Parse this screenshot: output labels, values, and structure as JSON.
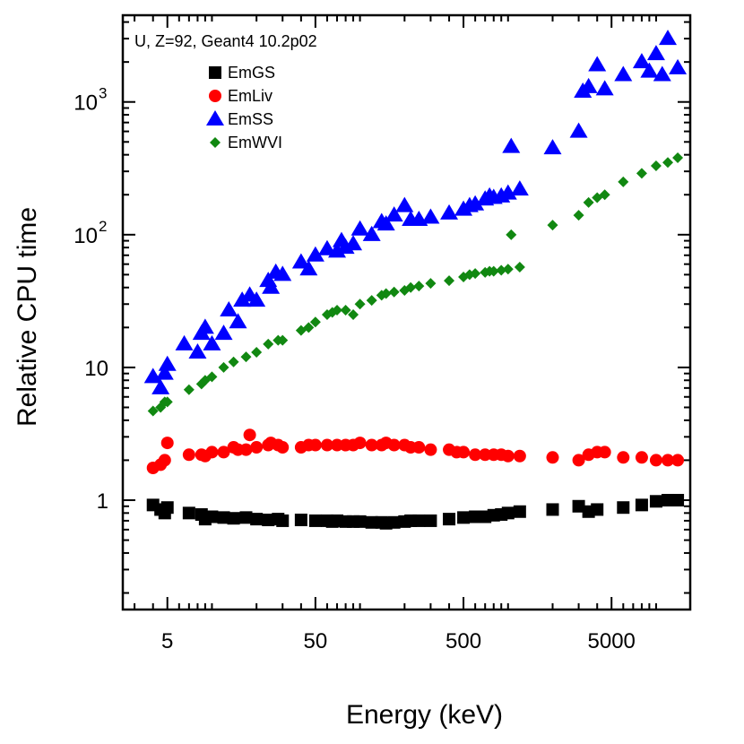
{
  "chart_data": {
    "type": "scatter",
    "xlabel": "Energy (keV)",
    "ylabel": "Relative CPU time",
    "annotation": "U, Z=92, Geant4 10.2p02",
    "x_scale": "log",
    "y_scale": "log",
    "xlim": [
      2.5,
      17000
    ],
    "ylim": [
      0.15,
      4500
    ],
    "legend_position": "top-left",
    "x_ticks": [
      {
        "value": 5,
        "label": "5"
      },
      {
        "value": 50,
        "label": "50"
      },
      {
        "value": 500,
        "label": "500"
      },
      {
        "value": 5000,
        "label": "5000"
      }
    ],
    "y_ticks": [
      {
        "value": 1,
        "label": "1"
      },
      {
        "value": 10,
        "label": "10"
      },
      {
        "value": 100,
        "label": "10",
        "exp": "2"
      },
      {
        "value": 1000,
        "label": "10",
        "exp": "3"
      }
    ],
    "series": [
      {
        "name": "EmGS",
        "marker": "square",
        "color": "#000000",
        "points": [
          [
            4,
            0.92
          ],
          [
            4.5,
            0.85
          ],
          [
            4.8,
            0.8
          ],
          [
            5,
            0.88
          ],
          [
            7,
            0.8
          ],
          [
            8.5,
            0.78
          ],
          [
            9,
            0.72
          ],
          [
            10,
            0.75
          ],
          [
            12,
            0.74
          ],
          [
            14,
            0.73
          ],
          [
            17,
            0.74
          ],
          [
            20,
            0.72
          ],
          [
            24,
            0.71
          ],
          [
            28,
            0.72
          ],
          [
            30,
            0.7
          ],
          [
            40,
            0.71
          ],
          [
            50,
            0.7
          ],
          [
            60,
            0.7
          ],
          [
            65,
            0.69
          ],
          [
            70,
            0.7
          ],
          [
            80,
            0.69
          ],
          [
            90,
            0.69
          ],
          [
            100,
            0.69
          ],
          [
            120,
            0.68
          ],
          [
            140,
            0.68
          ],
          [
            150,
            0.67
          ],
          [
            170,
            0.68
          ],
          [
            200,
            0.69
          ],
          [
            220,
            0.7
          ],
          [
            250,
            0.7
          ],
          [
            300,
            0.7
          ],
          [
            400,
            0.72
          ],
          [
            500,
            0.74
          ],
          [
            600,
            0.75
          ],
          [
            700,
            0.75
          ],
          [
            800,
            0.77
          ],
          [
            900,
            0.78
          ],
          [
            1000,
            0.8
          ],
          [
            1200,
            0.82
          ],
          [
            2000,
            0.85
          ],
          [
            3000,
            0.9
          ],
          [
            3500,
            0.82
          ],
          [
            4000,
            0.85
          ],
          [
            6000,
            0.88
          ],
          [
            8000,
            0.92
          ],
          [
            10000,
            0.98
          ],
          [
            12000,
            1.0
          ],
          [
            14000,
            1.0
          ]
        ]
      },
      {
        "name": "EmLiv",
        "marker": "circle",
        "color": "#ff0000",
        "points": [
          [
            4,
            1.75
          ],
          [
            4.5,
            1.85
          ],
          [
            4.8,
            2.0
          ],
          [
            5,
            2.7
          ],
          [
            7,
            2.2
          ],
          [
            8.5,
            2.2
          ],
          [
            9,
            2.15
          ],
          [
            10,
            2.3
          ],
          [
            12,
            2.3
          ],
          [
            14,
            2.5
          ],
          [
            15,
            2.4
          ],
          [
            17,
            2.4
          ],
          [
            18,
            3.1
          ],
          [
            20,
            2.5
          ],
          [
            24,
            2.6
          ],
          [
            25,
            2.7
          ],
          [
            28,
            2.6
          ],
          [
            30,
            2.5
          ],
          [
            40,
            2.5
          ],
          [
            45,
            2.6
          ],
          [
            50,
            2.6
          ],
          [
            60,
            2.6
          ],
          [
            70,
            2.6
          ],
          [
            80,
            2.6
          ],
          [
            90,
            2.6
          ],
          [
            100,
            2.7
          ],
          [
            120,
            2.6
          ],
          [
            140,
            2.6
          ],
          [
            150,
            2.7
          ],
          [
            170,
            2.6
          ],
          [
            200,
            2.6
          ],
          [
            220,
            2.5
          ],
          [
            250,
            2.5
          ],
          [
            300,
            2.4
          ],
          [
            400,
            2.4
          ],
          [
            450,
            2.3
          ],
          [
            500,
            2.3
          ],
          [
            600,
            2.2
          ],
          [
            700,
            2.2
          ],
          [
            800,
            2.2
          ],
          [
            900,
            2.2
          ],
          [
            1000,
            2.15
          ],
          [
            1200,
            2.15
          ],
          [
            2000,
            2.1
          ],
          [
            3000,
            2.0
          ],
          [
            3500,
            2.2
          ],
          [
            4000,
            2.3
          ],
          [
            4500,
            2.3
          ],
          [
            6000,
            2.1
          ],
          [
            8000,
            2.1
          ],
          [
            10000,
            2.0
          ],
          [
            12000,
            2.0
          ],
          [
            14000,
            2.0
          ]
        ]
      },
      {
        "name": "EmSS",
        "marker": "triangle",
        "color": "#0000ff",
        "points": [
          [
            4,
            8.5
          ],
          [
            4.5,
            7.0
          ],
          [
            4.8,
            9.0
          ],
          [
            5,
            10.5
          ],
          [
            6.5,
            15
          ],
          [
            8,
            13
          ],
          [
            8.5,
            18
          ],
          [
            9,
            20
          ],
          [
            10,
            15
          ],
          [
            12,
            18
          ],
          [
            13,
            27
          ],
          [
            15,
            22
          ],
          [
            16,
            32
          ],
          [
            18,
            35
          ],
          [
            20,
            32
          ],
          [
            24,
            45
          ],
          [
            25,
            40
          ],
          [
            27,
            52
          ],
          [
            30,
            50
          ],
          [
            40,
            62
          ],
          [
            45,
            55
          ],
          [
            50,
            70
          ],
          [
            60,
            78
          ],
          [
            70,
            75
          ],
          [
            75,
            90
          ],
          [
            80,
            80
          ],
          [
            90,
            85
          ],
          [
            100,
            110
          ],
          [
            120,
            100
          ],
          [
            140,
            125
          ],
          [
            150,
            120
          ],
          [
            170,
            140
          ],
          [
            200,
            165
          ],
          [
            220,
            130
          ],
          [
            250,
            130
          ],
          [
            300,
            135
          ],
          [
            400,
            145
          ],
          [
            500,
            155
          ],
          [
            550,
            165
          ],
          [
            600,
            170
          ],
          [
            700,
            185
          ],
          [
            750,
            195
          ],
          [
            800,
            190
          ],
          [
            900,
            195
          ],
          [
            1000,
            205
          ],
          [
            1050,
            460
          ],
          [
            1200,
            220
          ],
          [
            2000,
            450
          ],
          [
            3000,
            600
          ],
          [
            3200,
            1200
          ],
          [
            3500,
            1300
          ],
          [
            4000,
            1900
          ],
          [
            4500,
            1250
          ],
          [
            6000,
            1600
          ],
          [
            8000,
            2000
          ],
          [
            9000,
            1700
          ],
          [
            10000,
            2300
          ],
          [
            11000,
            1600
          ],
          [
            12000,
            3000
          ],
          [
            14000,
            1800
          ]
        ]
      },
      {
        "name": "EmWVI",
        "marker": "diamond",
        "color": "#118811",
        "points": [
          [
            4,
            4.7
          ],
          [
            4.5,
            5.0
          ],
          [
            4.8,
            5.5
          ],
          [
            5,
            5.5
          ],
          [
            7,
            6.8
          ],
          [
            8.5,
            7.5
          ],
          [
            9,
            8
          ],
          [
            10,
            8.5
          ],
          [
            12,
            10
          ],
          [
            14,
            11
          ],
          [
            17,
            12
          ],
          [
            20,
            13
          ],
          [
            24,
            15
          ],
          [
            28,
            16
          ],
          [
            30,
            16
          ],
          [
            40,
            19
          ],
          [
            45,
            20
          ],
          [
            50,
            22
          ],
          [
            60,
            25
          ],
          [
            65,
            26
          ],
          [
            70,
            27
          ],
          [
            80,
            27
          ],
          [
            90,
            25
          ],
          [
            100,
            30
          ],
          [
            120,
            32
          ],
          [
            140,
            35
          ],
          [
            150,
            36
          ],
          [
            170,
            37
          ],
          [
            200,
            38
          ],
          [
            220,
            40
          ],
          [
            250,
            41
          ],
          [
            300,
            43
          ],
          [
            400,
            45
          ],
          [
            500,
            48
          ],
          [
            550,
            50
          ],
          [
            600,
            51
          ],
          [
            700,
            52
          ],
          [
            750,
            53
          ],
          [
            800,
            53
          ],
          [
            900,
            54
          ],
          [
            1000,
            55
          ],
          [
            1050,
            100
          ],
          [
            1200,
            57
          ],
          [
            2000,
            118
          ],
          [
            3000,
            140
          ],
          [
            3500,
            175
          ],
          [
            4000,
            190
          ],
          [
            4500,
            200
          ],
          [
            6000,
            250
          ],
          [
            8000,
            290
          ],
          [
            10000,
            330
          ],
          [
            12000,
            350
          ],
          [
            14000,
            380
          ]
        ]
      }
    ]
  }
}
